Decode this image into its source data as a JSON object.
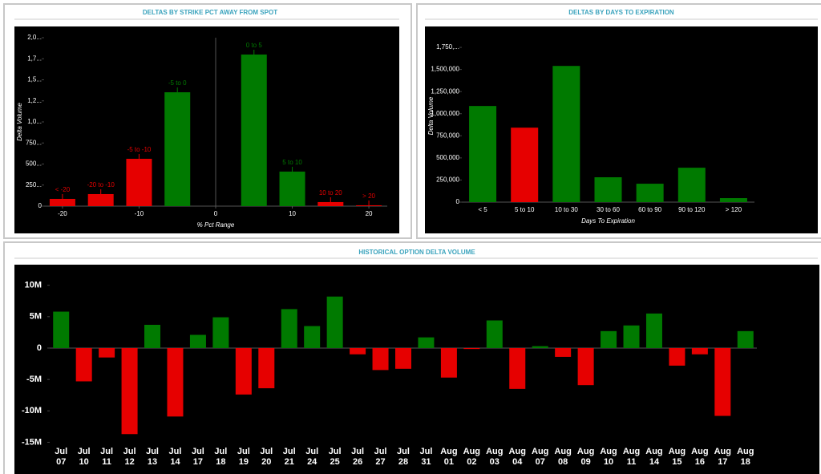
{
  "chart_data": [
    {
      "type": "bar",
      "title": "DELTAS BY STRIKE PCT AWAY FROM SPOT",
      "x_label": "% Pct Range",
      "y_label": "Delta Volume",
      "categories": [
        "< -20",
        "-20 to -10",
        "-5 to -10",
        "-5 to 0",
        "0 to 5",
        "5 to 10",
        "10 to 20",
        "> 20"
      ],
      "x": [
        -20,
        -15,
        -10,
        -5,
        5,
        10,
        15,
        20
      ],
      "values": [
        86000,
        143000,
        562000,
        1352000,
        1800000,
        410000,
        48000,
        10000
      ],
      "colors": [
        "#e60000",
        "#e60000",
        "#e60000",
        "#007a00",
        "#007a00",
        "#007a00",
        "#e60000",
        "#e60000"
      ],
      "xlim": [
        -22.4,
        22.4
      ],
      "xticks": [
        -20,
        -10,
        0,
        10,
        20
      ],
      "ylim": [
        0,
        2000000
      ],
      "yticks": [
        0,
        {
          "value": 250000,
          "label": "250..."
        },
        {
          "value": 500000,
          "label": "500..."
        },
        {
          "value": 750000,
          "label": "750..."
        },
        {
          "value": 1000000,
          "label": "1,0..."
        },
        {
          "value": 1250000,
          "label": "1,2..."
        },
        {
          "value": 1500000,
          "label": "1,5..."
        },
        {
          "value": 1750000,
          "label": "1,7..."
        },
        {
          "value": 2000000,
          "label": "2,0..."
        }
      ]
    },
    {
      "type": "bar",
      "title": "DELTAS BY DAYS TO EXPIRATION",
      "x_label": "Days To Expiration",
      "y_label": "Delta Volume",
      "categories": [
        "< 5",
        "5 to 10",
        "10 to 30",
        "30 to 60",
        "60 to 90",
        "90 to 120",
        "> 120"
      ],
      "values": [
        1087000,
        842000,
        1540000,
        281000,
        208000,
        389000,
        45000
      ],
      "colors": [
        "#007a00",
        "#e60000",
        "#007a00",
        "#007a00",
        "#007a00",
        "#007a00",
        "#007a00"
      ],
      "ylim": [
        0,
        1950000
      ],
      "yticks": [
        0,
        {
          "value": 250000,
          "label": "250,000"
        },
        {
          "value": 500000,
          "label": "500,000"
        },
        {
          "value": 750000,
          "label": "750,000"
        },
        {
          "value": 1000000,
          "label": "1,000,000"
        },
        {
          "value": 1250000,
          "label": "1,250,000"
        },
        {
          "value": 1500000,
          "label": "1,500,000"
        },
        {
          "value": 1750000,
          "label": "1,750,..."
        }
      ]
    },
    {
      "type": "bar",
      "title": "HISTORICAL OPTION DELTA VOLUME",
      "categories": [
        "Jul 07",
        "Jul 10",
        "Jul 11",
        "Jul 12",
        "Jul 13",
        "Jul 14",
        "Jul 17",
        "Jul 18",
        "Jul 19",
        "Jul 20",
        "Jul 21",
        "Jul 24",
        "Jul 25",
        "Jul 26",
        "Jul 27",
        "Jul 28",
        "Jul 31",
        "Aug 01",
        "Aug 02",
        "Aug 03",
        "Aug 04",
        "Aug 07",
        "Aug 08",
        "Aug 09",
        "Aug 10",
        "Aug 11",
        "Aug 14",
        "Aug 15",
        "Aug 16",
        "Aug 17",
        "Aug 18"
      ],
      "values": [
        5800000,
        -5300000,
        -1500000,
        -13700000,
        3700000,
        -10900000,
        2100000,
        4900000,
        -7400000,
        -6400000,
        6200000,
        3500000,
        8200000,
        -1000000,
        -3500000,
        -3300000,
        1700000,
        -4700000,
        -150000,
        4400000,
        -6500000,
        300000,
        -1400000,
        -5900000,
        2700000,
        3600000,
        5500000,
        -2800000,
        -1000000,
        -10800000,
        2700000
      ],
      "positive_color": "#007a00",
      "negative_color": "#e60000",
      "ylim": [
        -15200000,
        12000000
      ],
      "yticks": [
        {
          "value": 10000000,
          "label": "10M"
        },
        {
          "value": 5000000,
          "label": "5M"
        },
        0,
        {
          "value": -5000000,
          "label": "-5M"
        },
        {
          "value": -10000000,
          "label": "-10M"
        },
        {
          "value": -15000000,
          "label": "-15M"
        }
      ]
    }
  ]
}
